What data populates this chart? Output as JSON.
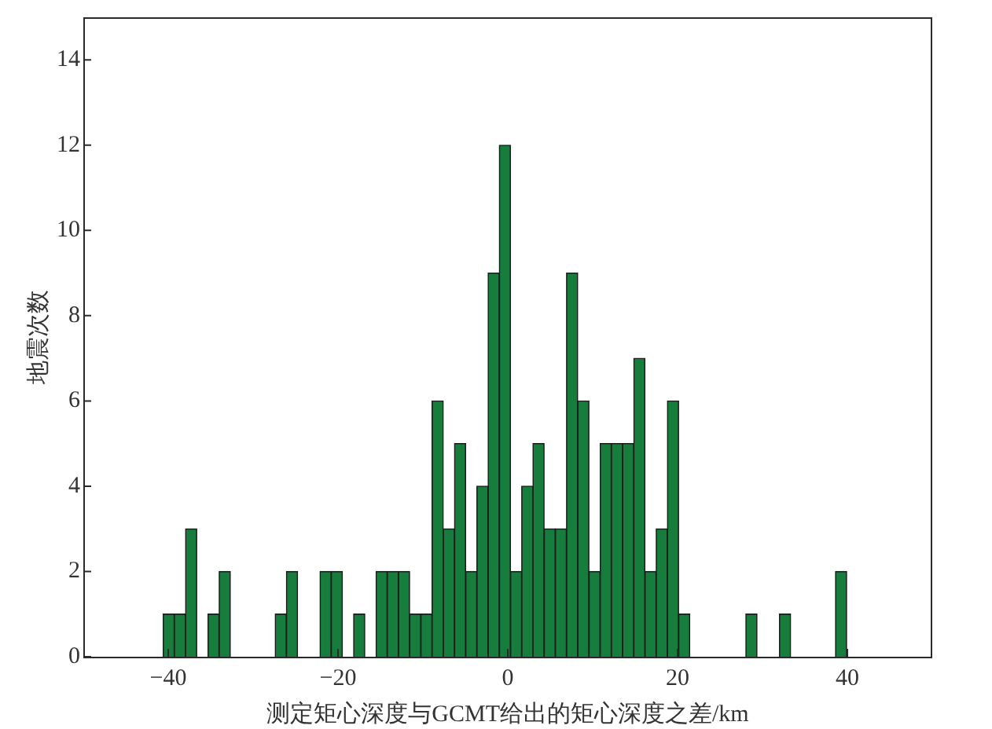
{
  "chart_data": {
    "type": "histogram",
    "xlabel": "测定矩心深度与GCMT给出的矩心深度之差/km",
    "ylabel": "地震次数",
    "bins": [
      -40.6,
      -39.28,
      -37.96,
      -36.64,
      -35.32,
      -34.0,
      -32.68,
      -31.36,
      -30.04,
      -28.72,
      -27.4,
      -26.08,
      -24.76,
      -23.44,
      -22.12,
      -20.8,
      -19.48,
      -18.16,
      -16.84,
      -15.52,
      -14.2,
      -12.88,
      -11.56,
      -10.24,
      -8.92,
      -7.6,
      -6.28,
      -4.96,
      -3.64,
      -2.32,
      -1.0,
      0.32,
      1.64,
      2.96,
      4.28,
      5.6,
      6.92,
      8.24,
      9.56,
      10.88,
      12.2,
      13.52,
      14.84,
      16.16,
      17.48,
      18.8,
      20.12,
      21.44,
      22.76,
      24.08,
      25.4,
      26.72,
      28.04,
      29.36,
      30.68,
      32.0,
      33.32,
      34.64,
      35.96,
      37.28,
      38.6,
      39.92
    ],
    "values": [
      1,
      1,
      3,
      0,
      1,
      2,
      0,
      0,
      0,
      0,
      1,
      2,
      0,
      0,
      2,
      2,
      0,
      1,
      0,
      2,
      2,
      2,
      1,
      1,
      6,
      3,
      5,
      2,
      4,
      9,
      12,
      2,
      4,
      5,
      3,
      3,
      9,
      6,
      2,
      5,
      5,
      5,
      7,
      2,
      3,
      6,
      1,
      0,
      0,
      0,
      0,
      0,
      1,
      0,
      0,
      1,
      0,
      0,
      0,
      0,
      2
    ],
    "color": "#167d3d",
    "xlim": [
      -50,
      50
    ],
    "xticks": [
      {
        "value": -40,
        "label": "−40"
      },
      {
        "value": -20,
        "label": "−20"
      },
      0,
      20,
      40
    ],
    "ylim": [
      0,
      15
    ],
    "yticks": [
      0,
      2,
      4,
      6,
      8,
      10,
      12,
      14
    ],
    "grid": false,
    "legend": false
  }
}
